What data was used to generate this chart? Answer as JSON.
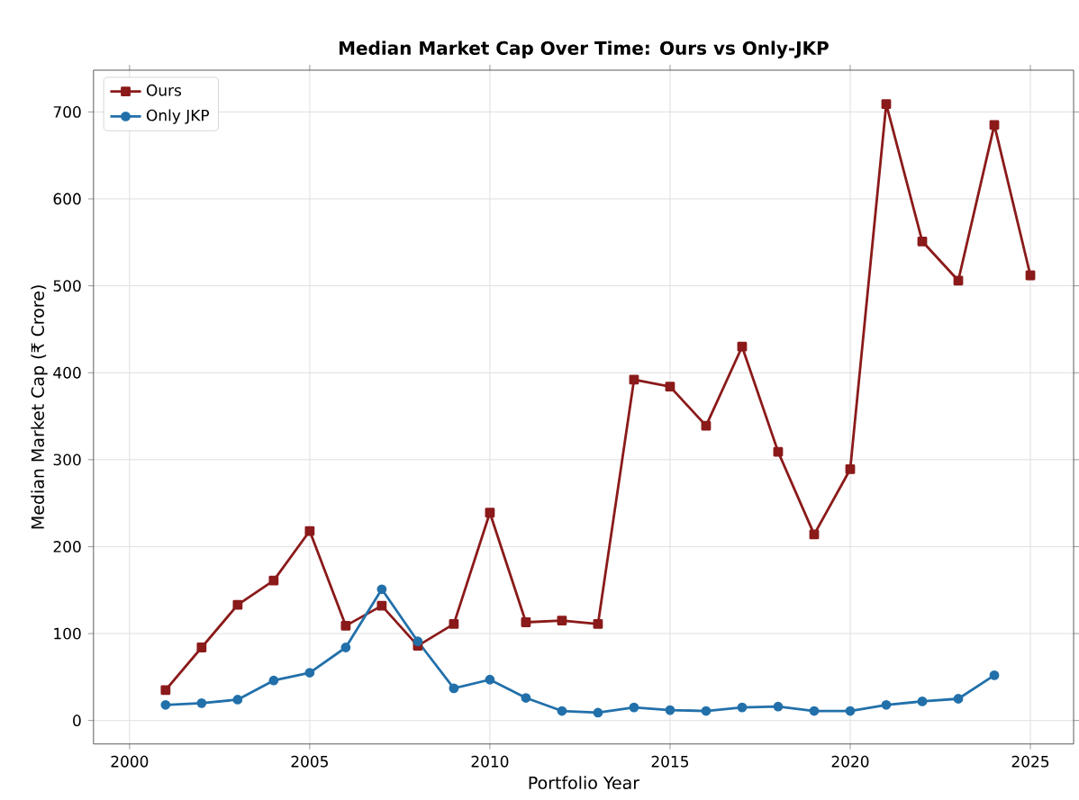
{
  "chart_data": {
    "type": "line",
    "title": "Median Market Cap Over Time: Ours vs Only-JKP",
    "xlabel": "Portfolio Year",
    "ylabel": "Median Market Cap (₹ Crore)",
    "x": [
      2001,
      2002,
      2003,
      2004,
      2005,
      2006,
      2007,
      2008,
      2009,
      2010,
      2011,
      2012,
      2013,
      2014,
      2015,
      2016,
      2017,
      2018,
      2019,
      2020,
      2021,
      2022,
      2023,
      2024,
      2025
    ],
    "series": [
      {
        "name": "Ours",
        "color": "#8b1a1a",
        "marker": "square",
        "values": [
          35,
          84,
          133,
          161,
          218,
          109,
          132,
          86,
          111,
          239,
          113,
          115,
          111,
          392,
          384,
          339,
          430,
          309,
          214,
          289,
          709,
          551,
          506,
          685,
          512
        ]
      },
      {
        "name": "Only JKP",
        "color": "#2270aa",
        "marker": "circle",
        "values": [
          18,
          20,
          24,
          46,
          55,
          84,
          151,
          91,
          37,
          47,
          26,
          11,
          9,
          15,
          12,
          11,
          15,
          16,
          11,
          11,
          18,
          22,
          25,
          52,
          null
        ]
      }
    ],
    "xlim": [
      1999,
      2026.2
    ],
    "ylim": [
      -27,
      748
    ],
    "xticks": [
      2000,
      2005,
      2010,
      2015,
      2020,
      2025
    ],
    "yticks": [
      0,
      100,
      200,
      300,
      400,
      500,
      600,
      700
    ],
    "grid": true,
    "legend": "top left",
    "line_style": "solid"
  }
}
